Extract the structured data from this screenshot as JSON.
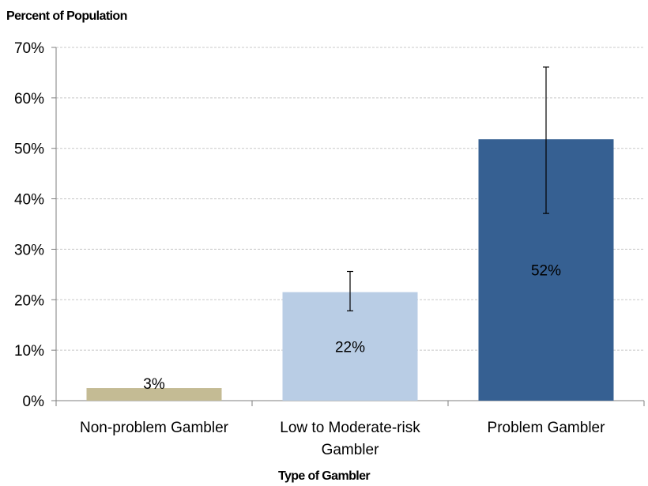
{
  "chart_data": {
    "type": "bar",
    "title": "",
    "ylabel": "Percent of Population",
    "xlabel": "Type of Gambler",
    "ylim": [
      0,
      70
    ],
    "yticks": [
      "0%",
      "10%",
      "20%",
      "30%",
      "40%",
      "50%",
      "60%",
      "70%"
    ],
    "grid": true,
    "categories": [
      [
        "Non-problem Gambler"
      ],
      [
        "Low to Moderate-risk",
        "Gambler"
      ],
      [
        "Problem Gambler"
      ]
    ],
    "values": [
      2.5,
      21.5,
      51.8
    ],
    "data_labels": [
      "3%",
      "22%",
      "52%"
    ],
    "error_bars": [
      null,
      [
        17.8,
        25.6
      ],
      [
        37.1,
        66.1
      ]
    ],
    "colors": [
      "#c4bb94",
      "#b9cde5",
      "#366092"
    ]
  }
}
